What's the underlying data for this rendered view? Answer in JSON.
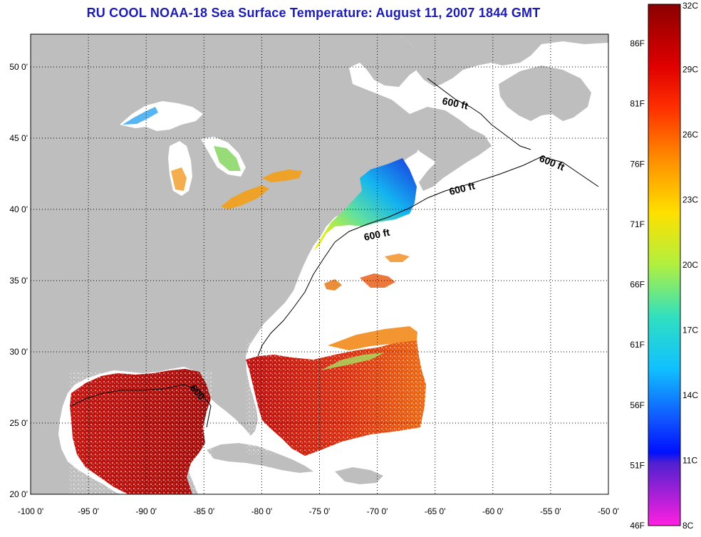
{
  "title": "RU COOL  NOAA-18  Sea Surface Temperature:  August 11, 2007 1844 GMT",
  "map": {
    "lon_ticks": [
      "-100 0'",
      "-95 0'",
      "-90 0'",
      "-85 0'",
      "-80 0'",
      "-75 0'",
      "-70 0'",
      "-65 0'",
      "-60 0'",
      "-55 0'",
      "-50 0'"
    ],
    "lat_ticks": [
      "50 0'",
      "45 0'",
      "40 0'",
      "35 0'",
      "30 0'",
      "25 0'",
      "20 0'"
    ],
    "lon_range": [
      -100,
      -50
    ],
    "lat_range": [
      20,
      52.3
    ],
    "contour_labels": [
      "600 ft",
      "600 ft",
      "600 ft",
      "600 ft",
      "600"
    ],
    "colors": {
      "land": "#bebebe",
      "no_data": "#ffffff",
      "grid": "#000000"
    }
  },
  "colorbar": {
    "fahrenheit": [
      "86F",
      "81F",
      "76F",
      "71F",
      "66F",
      "61F",
      "56F",
      "51F",
      "46F"
    ],
    "celsius": [
      "32C",
      "29C",
      "26C",
      "23C",
      "20C",
      "17C",
      "14C",
      "11C",
      "8C"
    ]
  }
}
